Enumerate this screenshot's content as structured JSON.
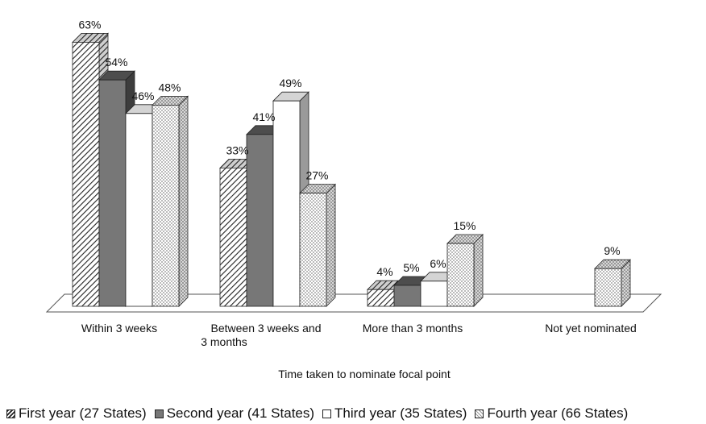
{
  "chart_data": {
    "type": "bar",
    "xlabel": "Time taken to nominate focal point",
    "categories": [
      "Within 3 weeks",
      "Between 3 weeks and 3 months",
      "More than 3 months",
      "Not yet nominated"
    ],
    "category_lines": [
      [
        "Within 3 weeks"
      ],
      [
        "Between 3 weeks and",
        "3 months"
      ],
      [
        "More than 3 months"
      ],
      [
        "Not yet nominated"
      ]
    ],
    "series": [
      {
        "name": "First year (27 States)",
        "values": [
          63,
          33,
          4,
          null
        ],
        "labels": [
          "63%",
          "33%",
          "4%",
          ""
        ]
      },
      {
        "name": "Second year (41 States)",
        "values": [
          54,
          41,
          5,
          null
        ],
        "labels": [
          "54%",
          "41%",
          "5%",
          ""
        ]
      },
      {
        "name": "Third year (35 States)",
        "values": [
          46,
          49,
          6,
          null
        ],
        "labels": [
          "46%",
          "49%",
          "6%",
          ""
        ]
      },
      {
        "name": "Fourth year (66 States)",
        "values": [
          48,
          27,
          15,
          9
        ],
        "labels": [
          "48%",
          "27%",
          "15%",
          "9%"
        ]
      }
    ],
    "ylim": [
      0,
      70
    ],
    "unit": "%",
    "grid": false,
    "legend_position": "bottom",
    "style": "3d-bar"
  }
}
